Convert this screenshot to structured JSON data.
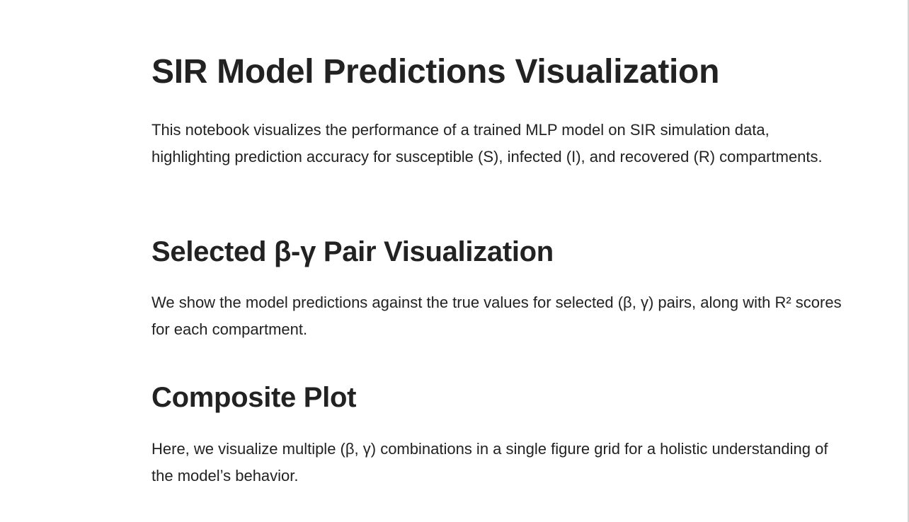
{
  "title": "SIR Model Predictions Visualization",
  "intro": "This notebook visualizes the performance of a trained MLP model on SIR simulation data, highlighting prediction accuracy for susceptible (S), infected (I), and recovered (R) compartments.",
  "sections": [
    {
      "heading": "Selected β-γ Pair Visualization",
      "text": "We show the model predictions against the true values for selected (β, γ) pairs, along with R² scores for each compartment."
    },
    {
      "heading": "Composite Plot",
      "text": "Here, we visualize multiple (β, γ) combinations in a single figure grid for a holistic understanding of the model’s behavior."
    }
  ]
}
